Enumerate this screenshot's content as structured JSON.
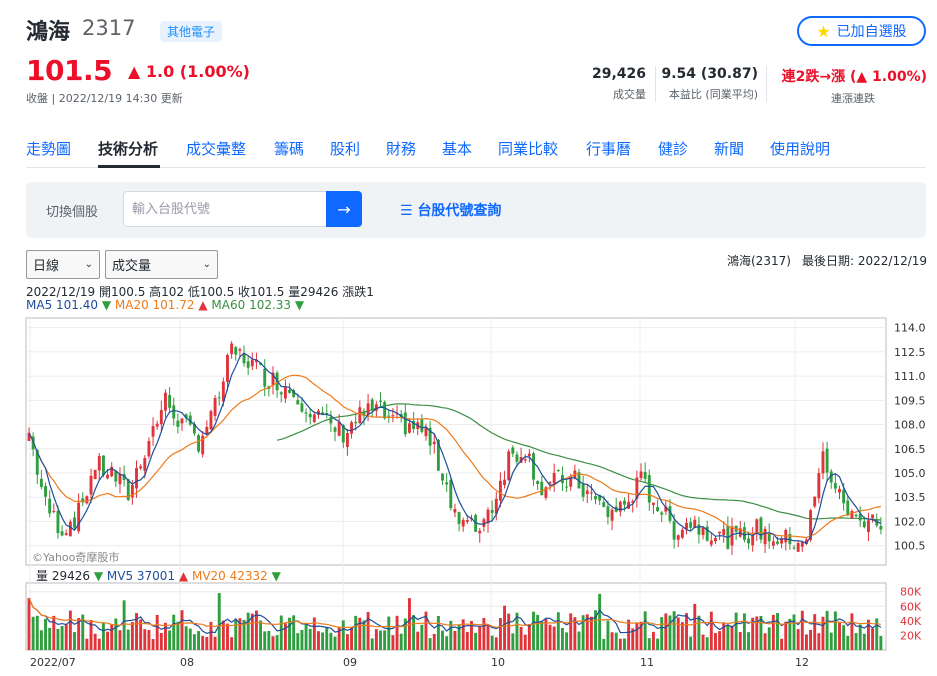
{
  "stock": {
    "name": "鴻海",
    "code": "2317",
    "tag": "其他電子",
    "price": "101.5",
    "change": "▲ 1.0 (1.00%)",
    "status": "收盤 | 2022/12/19 14:30 更新",
    "watch_button": "已加自選股"
  },
  "stats": [
    {
      "value": "29,426",
      "label": "成交量"
    },
    {
      "value": "9.54 (30.87)",
      "label": "本益比 (同業平均)"
    },
    {
      "value": "連2跌→漲 (▲ 1.00%)",
      "label": "連漲連跌"
    }
  ],
  "nav": [
    "走勢圖",
    "技術分析",
    "成交彙整",
    "籌碼",
    "股利",
    "財務",
    "基本",
    "同業比較",
    "行事曆",
    "健診",
    "新聞",
    "使用說明"
  ],
  "search": {
    "label": "切換個股",
    "placeholder": "輸入台股代號",
    "lookup": "台股代號查詢"
  },
  "controls": {
    "period": "日線",
    "indicator": "成交量"
  },
  "chart_header": {
    "stock": "鴻海(2317)",
    "last_date": "最後日期: 2022/12/19",
    "ohlc": "2022/12/19 開100.5 高102 低100.5 收101.5 量29426 漲跌1",
    "ma5": "MA5 101.40",
    "ma20": "MA20 101.72",
    "ma60": "MA60 102.33",
    "vol": "量 29426",
    "mv5": "MV5 37001",
    "mv20": "MV20 42332",
    "watermark": "©Yahoo奇摩股市"
  },
  "colors": {
    "up": "#e0333a",
    "down": "#2e9e3e",
    "ma5": "#1f4e9c",
    "ma20": "#ee7a1a",
    "ma60": "#3b8f45"
  },
  "chart_data": {
    "type": "candlestick",
    "price_ticks": [
      "114.0",
      "112.5",
      "111.0",
      "109.5",
      "108.0",
      "106.5",
      "105.0",
      "103.5",
      "102.0",
      "100.5"
    ],
    "volume_ticks": [
      "80K",
      "60K",
      "40K",
      "20K"
    ],
    "x_ticks": [
      "2022/07",
      "08",
      "09",
      "10",
      "11",
      "12"
    ],
    "last": {
      "date": "2022/12/19",
      "open": 100.5,
      "high": 102,
      "low": 100.5,
      "close": 101.5,
      "volume": 29426
    },
    "ma": {
      "ma5": 101.4,
      "ma20": 101.72,
      "ma60": 102.33
    },
    "mv": {
      "mv5": 37001,
      "mv20": 42332
    }
  }
}
